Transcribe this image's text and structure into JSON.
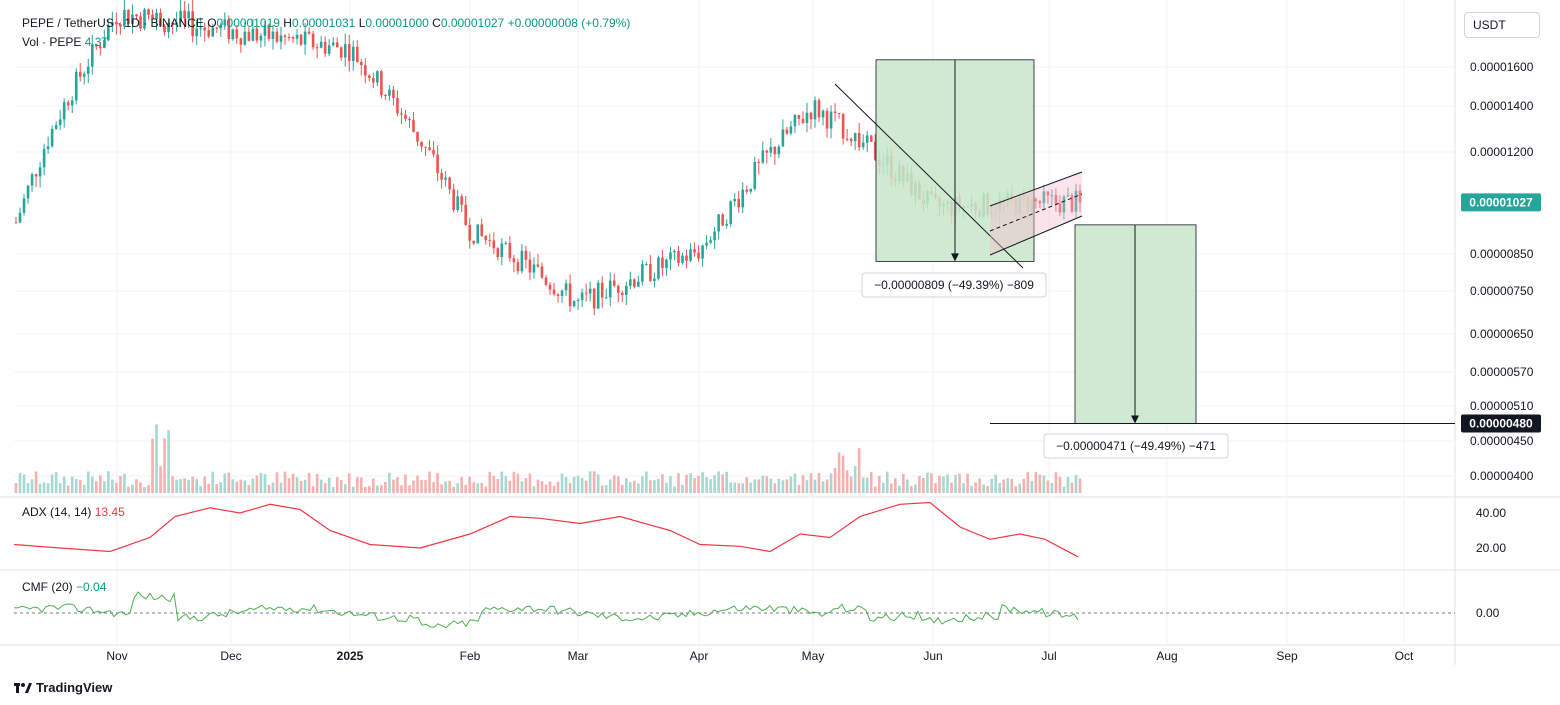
{
  "header": {
    "symbol": "PEPE / TetherUS · 1D · BINANCE",
    "open": "0.00001019",
    "high": "0.00001031",
    "low": "0.00001000",
    "close": "0.00001027",
    "change": "+0.00000008 (+0.79%)",
    "vol_label": "Vol · PEPE",
    "vol_value": "4.3T"
  },
  "currency_button": "USDT",
  "price_axis": {
    "ticks": [
      "0.00001600",
      "0.00001400",
      "0.00001200",
      "0.00000850",
      "0.00000750",
      "0.00000650",
      "0.00000570",
      "0.00000510",
      "0.00000450",
      "0.00000400"
    ],
    "tick_values": [
      1.6e-05,
      1.4e-05,
      1.2e-05,
      8.5e-06,
      7.5e-06,
      6.5e-06,
      5.7e-06,
      5.1e-06,
      4.5e-06,
      4e-06
    ],
    "current_price_label": "0.00001027",
    "current_price": 1.027e-05,
    "target_price_label": "0.00000480",
    "target_price": 4.8e-06,
    "current_color": "#26a69a",
    "target_color": "#131722"
  },
  "time_axis": {
    "labels": [
      "Nov",
      "Dec",
      "2025",
      "Feb",
      "Mar",
      "Apr",
      "May",
      "Jun",
      "Jul",
      "Aug",
      "Sep",
      "Oct"
    ]
  },
  "measurements": {
    "first": {
      "label": "−0.00000809 (−49.39%) −809",
      "from_price": 1.64e-05,
      "to_price": 8.3e-06
    },
    "second": {
      "label": "−0.00000471 (−49.49%) −471",
      "from_price": 9.5e-06,
      "to_price": 4.8e-06
    },
    "box_color": "#c8e6c9"
  },
  "adx": {
    "label": "ADX (14, 14)",
    "value": "13.45",
    "ticks": [
      "40.00",
      "20.00"
    ],
    "tick_values": [
      40,
      20
    ],
    "color": "#f23645"
  },
  "cmf": {
    "label": "CMF (20)",
    "value": "−0.04",
    "ticks": [
      "0.00"
    ],
    "tick_values": [
      0
    ],
    "color": "#4caf50"
  },
  "branding": "TradingView",
  "chart_data": {
    "type": "candlestick",
    "candle_up_color": "#26a69a",
    "candle_down_color": "#ef5350",
    "monthly_closes": [
      {
        "month": "Oct",
        "close": 9.4e-06
      },
      {
        "month": "Nov",
        "close": 1.9e-05
      },
      {
        "month": "Dec",
        "close": 1.8e-05
      },
      {
        "month": "2025",
        "close": 1.7e-05
      },
      {
        "month": "Feb",
        "close": 9.3e-06
      },
      {
        "month": "Mar",
        "close": 7.2e-06
      },
      {
        "month": "Apr",
        "close": 8.6e-06
      },
      {
        "month": "May",
        "close": 1.4e-05
      },
      {
        "month": "Jun",
        "close": 1.01e-05
      },
      {
        "month": "Jul",
        "close": 1.027e-05
      }
    ]
  }
}
